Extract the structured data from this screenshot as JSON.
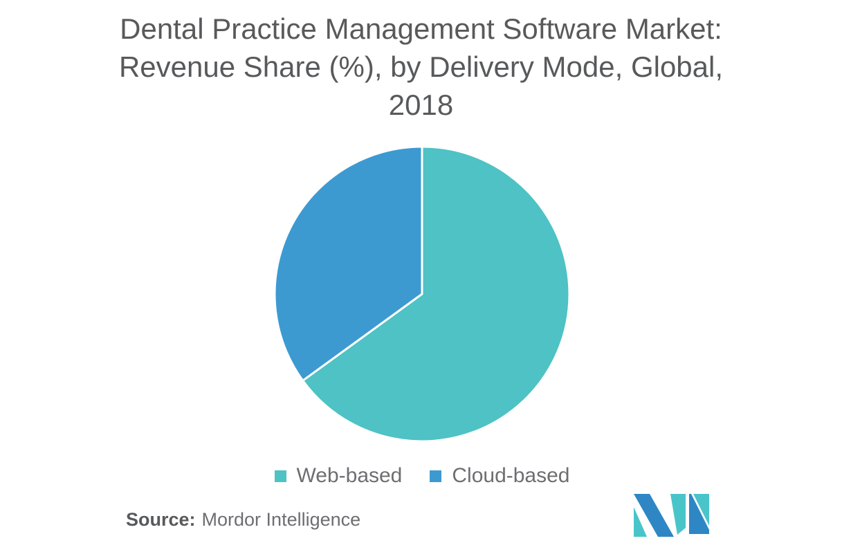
{
  "page": {
    "background_color": "#FFFFFF"
  },
  "title": {
    "full_text": "Dental Practice Management Software Market: Revenue Share (%), by Delivery Mode, Global, 2018",
    "lines": [
      "Dental Practice Management Software Market:",
      "Revenue Share (%), by Delivery Mode, Global,",
      "2018"
    ],
    "color": "#58595B"
  },
  "chart_data": {
    "type": "pie",
    "title": "Dental Practice Management Software Market: Revenue Share (%), by Delivery Mode, Global, 2018",
    "units": "%",
    "start_angle_deg": 0,
    "direction": "clockwise",
    "legend_position": "bottom",
    "slice_border_color": "#FFFFFF",
    "slices": [
      {
        "label": "Web-based",
        "value": 65,
        "color": "#4EC2C5"
      },
      {
        "label": "Cloud-based",
        "value": 35,
        "color": "#3D9AD1"
      }
    ]
  },
  "source": {
    "label": "Source:",
    "text": "Mordor Intelligence"
  },
  "logo": {
    "name": "mordor-intelligence-logo",
    "colors": {
      "blue": "#2F86C4",
      "teal": "#49C5CA"
    }
  }
}
